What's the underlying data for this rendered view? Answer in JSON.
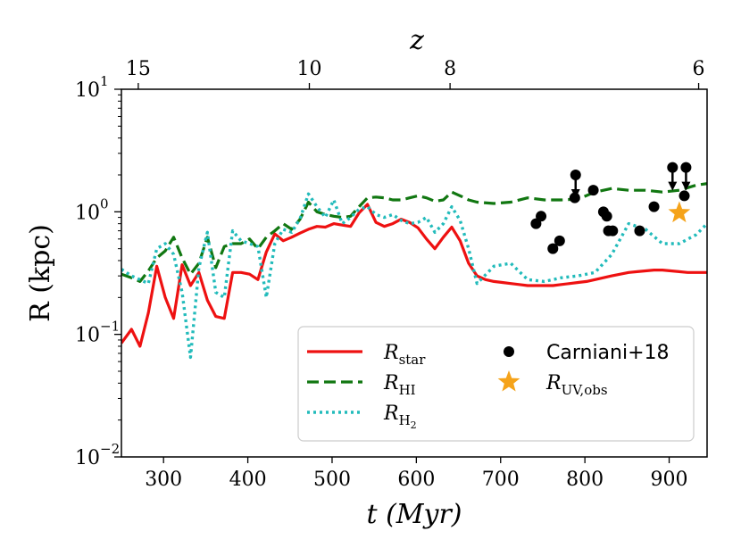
{
  "chart_data": {
    "type": "line",
    "xlabel": "t (Myr)",
    "ylabel": "R (kpc)",
    "top_xlabel": "z",
    "xlim": [
      250,
      945
    ],
    "ylim": [
      0.01,
      10
    ],
    "yscale": "log",
    "x_ticks": [
      300,
      400,
      500,
      600,
      700,
      800,
      900
    ],
    "y_ticks": [
      {
        "value": 0.01,
        "base": "10",
        "exp": "−2"
      },
      {
        "value": 0.1,
        "base": "10",
        "exp": "−1"
      },
      {
        "value": 1,
        "base": "10",
        "exp": "0"
      },
      {
        "value": 10,
        "base": "10",
        "exp": "1"
      }
    ],
    "top_ticks": [
      {
        "label": "15",
        "t": 270
      },
      {
        "label": "10",
        "t": 473
      },
      {
        "label": "8",
        "t": 640
      },
      {
        "label": "6",
        "t": 935
      }
    ],
    "colors": {
      "star": "#ee1111",
      "hi": "#117711",
      "h2": "#22bbbb",
      "obs": "#000000",
      "uv": "#f5a31a"
    },
    "series": [
      {
        "id": "star",
        "name": "R",
        "sub": "star",
        "style": "solid",
        "x": [
          250,
          262,
          272,
          282,
          292,
          302,
          312,
          322,
          332,
          342,
          352,
          362,
          372,
          382,
          392,
          402,
          412,
          422,
          432,
          442,
          452,
          462,
          472,
          482,
          492,
          502,
          512,
          522,
          532,
          542,
          552,
          562,
          572,
          582,
          592,
          602,
          612,
          622,
          632,
          642,
          652,
          662,
          672,
          682,
          692,
          702,
          712,
          722,
          732,
          742,
          752,
          762,
          772,
          782,
          792,
          802,
          812,
          822,
          832,
          842,
          852,
          862,
          872,
          882,
          892,
          902,
          912,
          922,
          932,
          945
        ],
        "y": [
          0.085,
          0.11,
          0.08,
          0.15,
          0.36,
          0.2,
          0.135,
          0.37,
          0.25,
          0.32,
          0.19,
          0.14,
          0.135,
          0.32,
          0.32,
          0.31,
          0.28,
          0.47,
          0.66,
          0.58,
          0.62,
          0.67,
          0.72,
          0.76,
          0.75,
          0.8,
          0.78,
          0.76,
          0.98,
          1.15,
          0.82,
          0.76,
          0.8,
          0.87,
          0.82,
          0.74,
          0.6,
          0.5,
          0.62,
          0.75,
          0.58,
          0.38,
          0.3,
          0.28,
          0.27,
          0.265,
          0.26,
          0.255,
          0.25,
          0.25,
          0.25,
          0.25,
          0.255,
          0.26,
          0.265,
          0.27,
          0.28,
          0.29,
          0.3,
          0.31,
          0.32,
          0.325,
          0.33,
          0.335,
          0.335,
          0.33,
          0.325,
          0.32,
          0.32,
          0.32
        ]
      },
      {
        "id": "hi",
        "name": "R",
        "sub": "HI",
        "style": "dashed",
        "x": [
          250,
          262,
          272,
          282,
          292,
          302,
          312,
          322,
          332,
          342,
          352,
          362,
          372,
          382,
          392,
          402,
          412,
          422,
          432,
          442,
          452,
          462,
          472,
          482,
          492,
          502,
          512,
          522,
          532,
          542,
          552,
          562,
          572,
          582,
          592,
          602,
          612,
          622,
          632,
          642,
          652,
          662,
          672,
          692,
          712,
          732,
          752,
          772,
          792,
          812,
          832,
          852,
          872,
          892,
          912,
          932,
          945
        ],
        "y": [
          0.31,
          0.29,
          0.27,
          0.33,
          0.42,
          0.48,
          0.62,
          0.42,
          0.31,
          0.38,
          0.62,
          0.35,
          0.52,
          0.55,
          0.55,
          0.6,
          0.5,
          0.62,
          0.7,
          0.8,
          0.72,
          0.87,
          1.2,
          1.0,
          0.95,
          0.92,
          0.9,
          0.92,
          1.1,
          1.3,
          1.32,
          1.3,
          1.25,
          1.25,
          1.3,
          1.35,
          1.3,
          1.22,
          1.25,
          1.45,
          1.35,
          1.25,
          1.2,
          1.17,
          1.2,
          1.3,
          1.25,
          1.25,
          1.27,
          1.45,
          1.55,
          1.5,
          1.5,
          1.45,
          1.5,
          1.65,
          1.7
        ]
      },
      {
        "id": "h2",
        "name": "R",
        "sub": "H",
        "sub2": "2",
        "style": "dotted",
        "x": [
          250,
          262,
          272,
          282,
          292,
          302,
          312,
          322,
          332,
          342,
          352,
          362,
          372,
          382,
          392,
          402,
          412,
          422,
          432,
          442,
          452,
          462,
          472,
          482,
          492,
          502,
          512,
          522,
          532,
          542,
          552,
          562,
          572,
          582,
          592,
          602,
          612,
          622,
          632,
          642,
          652,
          662,
          672,
          692,
          712,
          732,
          752,
          772,
          792,
          812,
          832,
          852,
          872,
          892,
          912,
          932,
          945
        ],
        "y": [
          0.34,
          0.3,
          0.28,
          0.26,
          0.5,
          0.55,
          0.45,
          0.22,
          0.065,
          0.35,
          0.68,
          0.22,
          0.2,
          0.7,
          0.58,
          0.55,
          0.52,
          0.2,
          0.55,
          0.72,
          0.68,
          0.88,
          1.4,
          1.1,
          0.9,
          1.25,
          0.8,
          0.9,
          1.05,
          1.1,
          0.95,
          0.9,
          0.95,
          0.85,
          0.8,
          0.82,
          0.9,
          0.68,
          0.8,
          1.1,
          0.85,
          0.5,
          0.26,
          0.36,
          0.38,
          0.28,
          0.27,
          0.29,
          0.3,
          0.32,
          0.45,
          0.8,
          0.72,
          0.55,
          0.55,
          0.65,
          0.8
        ]
      }
    ],
    "observations": {
      "name": "Carniani+18",
      "points": [
        {
          "t": 742,
          "r": 0.8
        },
        {
          "t": 748,
          "r": 0.92
        },
        {
          "t": 762,
          "r": 0.5
        },
        {
          "t": 770,
          "r": 0.58
        },
        {
          "t": 788,
          "r": 1.3
        },
        {
          "t": 810,
          "r": 1.5
        },
        {
          "t": 822,
          "r": 1.0
        },
        {
          "t": 826,
          "r": 0.92
        },
        {
          "t": 828,
          "r": 0.7
        },
        {
          "t": 833,
          "r": 0.7
        },
        {
          "t": 865,
          "r": 0.7
        },
        {
          "t": 882,
          "r": 1.1
        },
        {
          "t": 918,
          "r": 1.35
        }
      ],
      "upper_limits": [
        {
          "t": 789,
          "r": 2.0
        },
        {
          "t": 904,
          "r": 2.3
        },
        {
          "t": 920,
          "r": 2.3
        }
      ]
    },
    "uv_obs": {
      "name": "R",
      "sub": "UV,obs",
      "t": 912,
      "r": 0.98
    }
  }
}
